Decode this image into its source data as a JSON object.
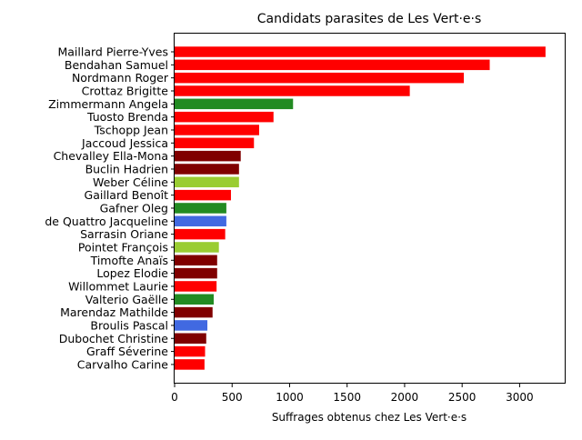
{
  "chart_data": {
    "type": "bar",
    "orientation": "horizontal",
    "title": "Candidats parasites de Les Vert·e·s",
    "xlabel": "Suffrages obtenus chez Les Vert·e·s",
    "ylabel": "",
    "xlim": [
      0,
      3400
    ],
    "xticks": [
      0,
      500,
      1000,
      1500,
      2000,
      2500,
      3000
    ],
    "xtick_labels": [
      "0",
      "500",
      "1000",
      "1500",
      "2000",
      "2500",
      "3000"
    ],
    "grid": false,
    "legend": null,
    "categories": [
      "Maillard Pierre-Yves",
      "Bendahan Samuel",
      "Nordmann Roger",
      "Crottaz Brigitte",
      "Zimmermann Angela",
      "Tuosto Brenda",
      "Tschopp Jean",
      "Jaccoud Jessica",
      "Chevalley Ella-Mona",
      "Buclin Hadrien",
      "Weber Céline",
      "Gaillard Benoît",
      "Gafner Oleg",
      "de Quattro Jacqueline",
      "Sarrasin Oriane",
      "Pointet François",
      "Timofte Anaïs",
      "Lopez Elodie",
      "Willommet Laurie",
      "Valterio Gaëlle",
      "Marendaz Mathilde",
      "Broulis Pascal",
      "Dubochet Christine",
      "Graff Séverine",
      "Carvalho Carine"
    ],
    "values": [
      3225,
      2740,
      2515,
      2045,
      1030,
      860,
      735,
      690,
      575,
      560,
      560,
      490,
      450,
      450,
      440,
      385,
      370,
      370,
      365,
      340,
      330,
      285,
      275,
      265,
      260
    ],
    "colors": [
      "#ff0000",
      "#ff0000",
      "#ff0000",
      "#ff0000",
      "#228b22",
      "#ff0000",
      "#ff0000",
      "#ff0000",
      "#800000",
      "#800000",
      "#9acd32",
      "#ff0000",
      "#228b22",
      "#4169e1",
      "#ff0000",
      "#9acd32",
      "#800000",
      "#800000",
      "#ff0000",
      "#228b22",
      "#800000",
      "#4169e1",
      "#800000",
      "#ff0000",
      "#ff0000"
    ]
  }
}
